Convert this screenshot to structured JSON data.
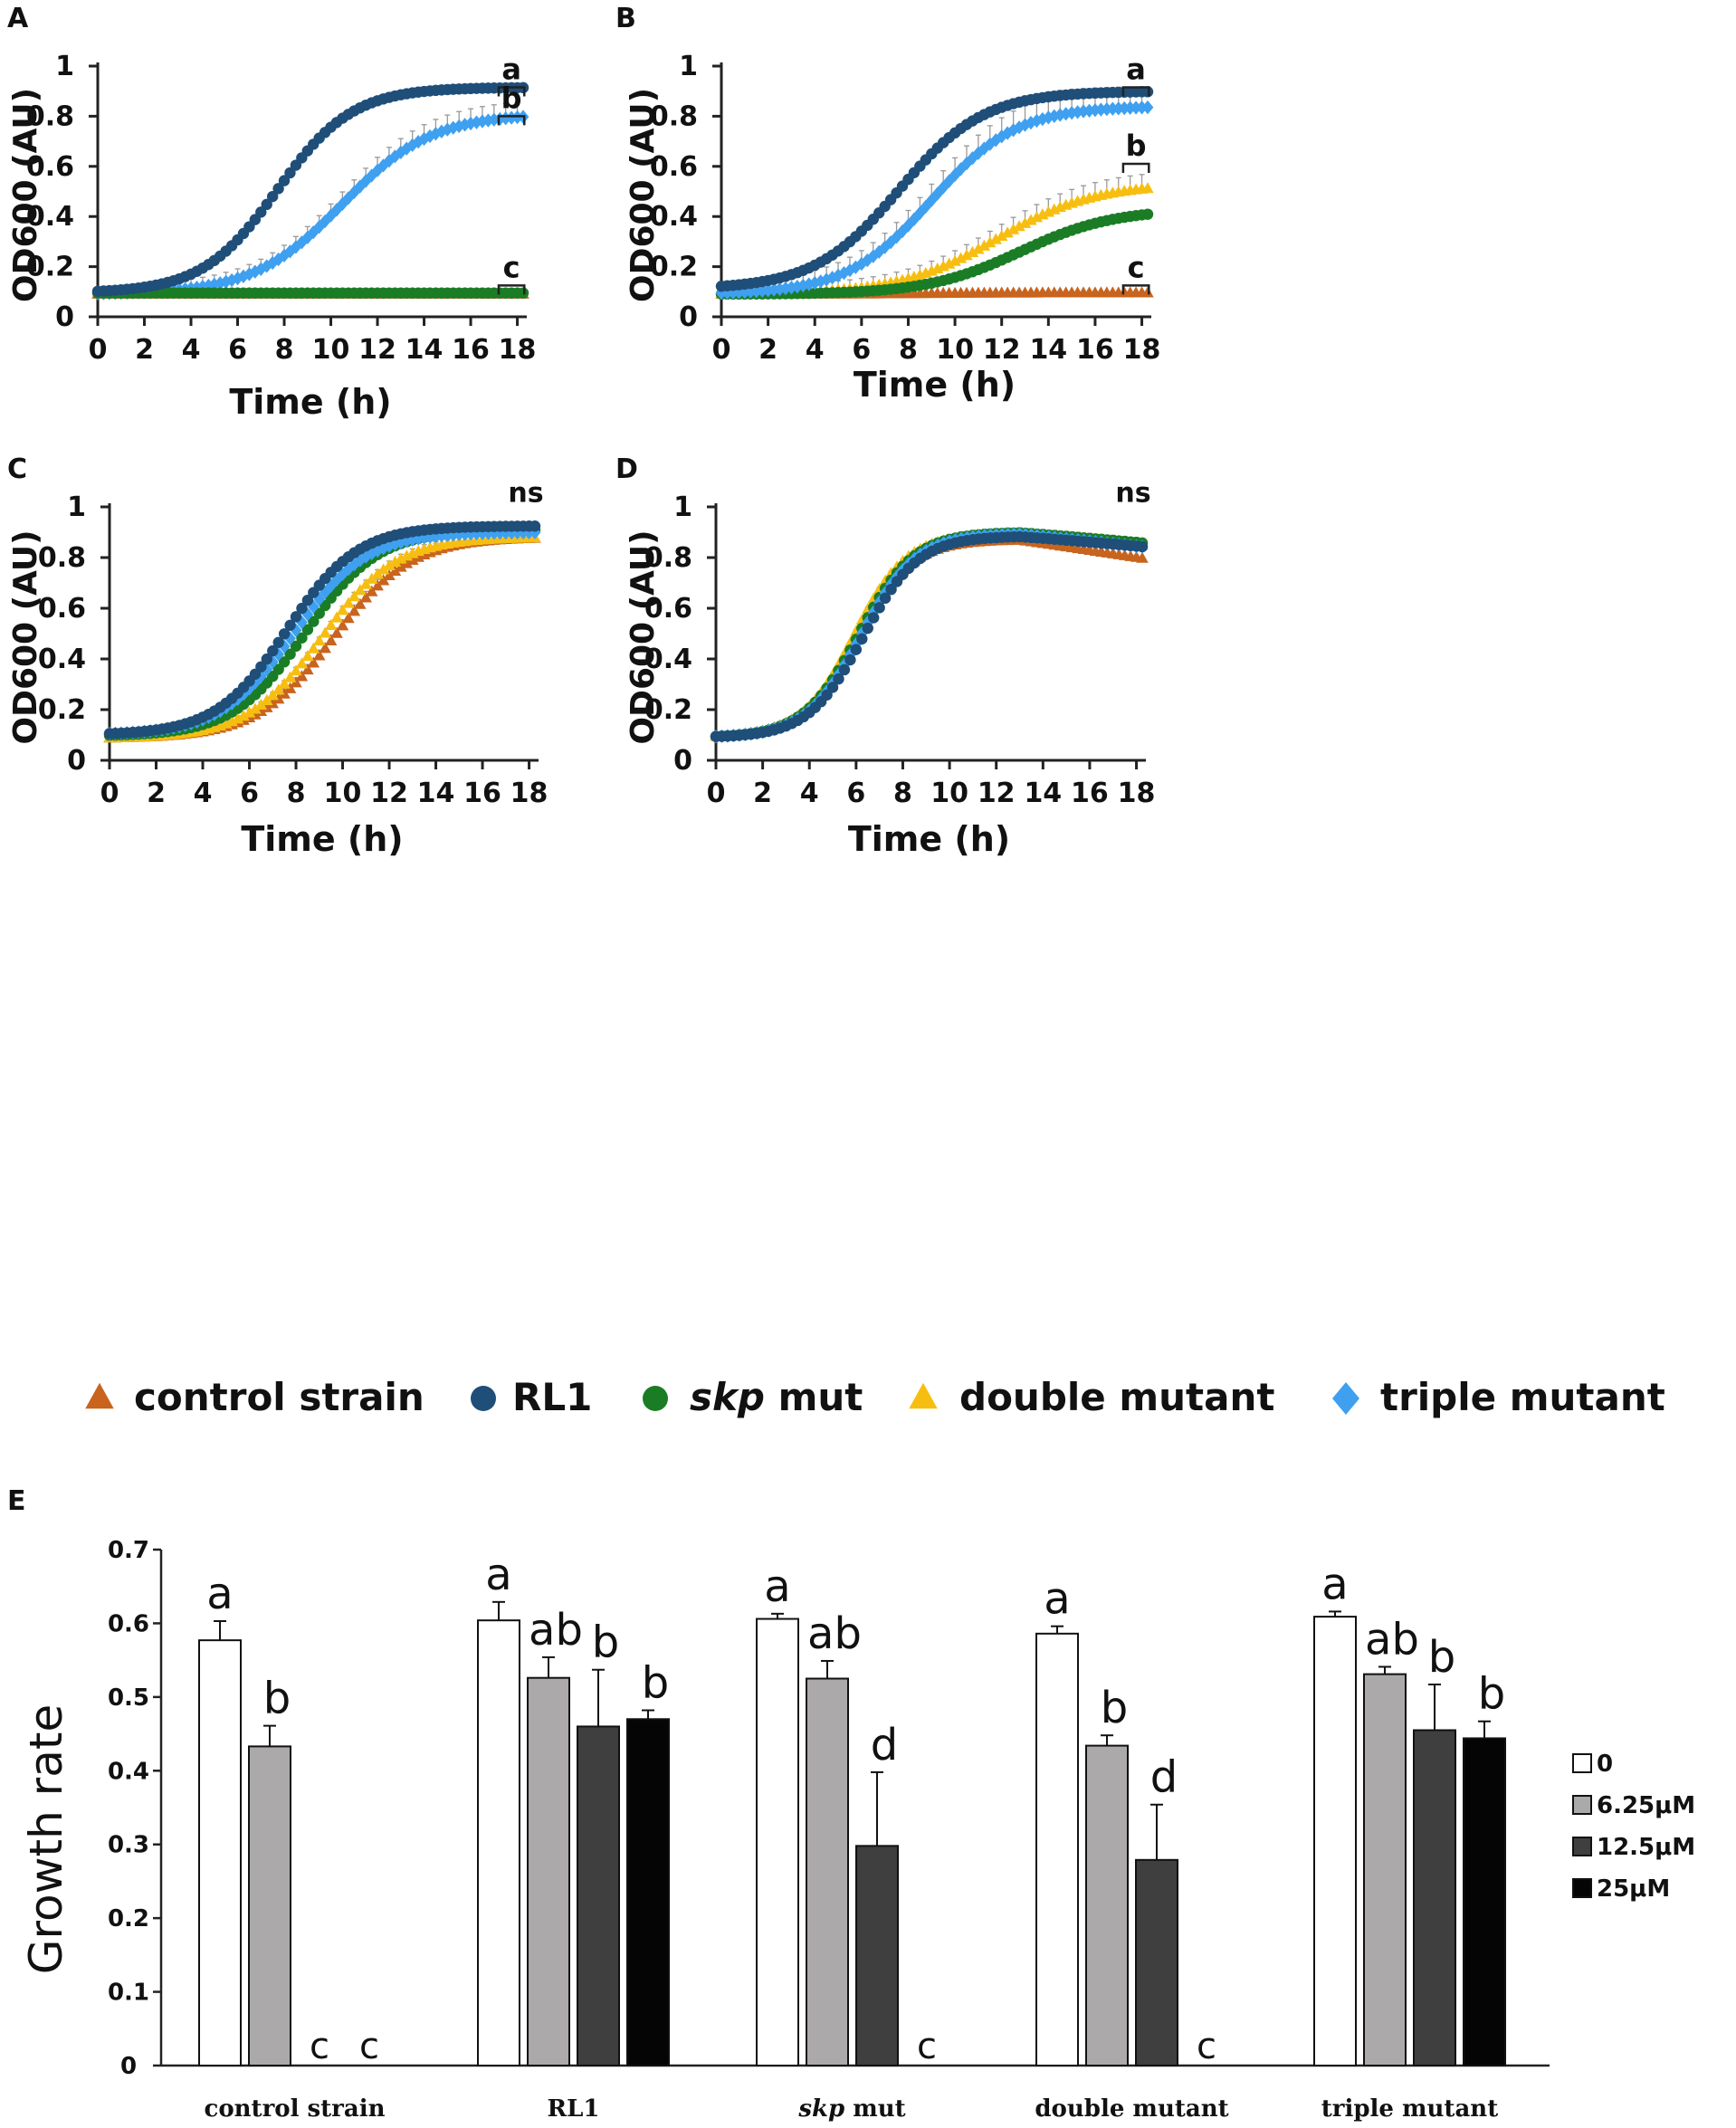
{
  "colors": {
    "control": "#C8641E",
    "rl1": "#1F4E79",
    "skp": "#1A7D25",
    "double": "#F7BE12",
    "triple": "#3FA0F0",
    "axis": "#222222",
    "error": "#999999",
    "bar_0": "#FFFFFF",
    "bar_625": "#ABA9A9",
    "bar_125": "#3F3F3F",
    "bar_25": "#050505"
  },
  "legend": {
    "control": "control strain",
    "rl1": "RL1",
    "skp_italic": "skp",
    "skp_rest": " mut",
    "double": "double mutant",
    "triple": "triple mutant"
  },
  "chart_data": [
    {
      "panel": "A",
      "type": "scatter",
      "xlabel": "Time (h)",
      "ylabel": "OD600 (AU)",
      "xlim": [
        0,
        18.25
      ],
      "ylim": [
        0,
        1
      ],
      "xticks": [
        "0",
        "2",
        "4",
        "6",
        "8",
        "10",
        "12",
        "14",
        "16",
        "18"
      ],
      "yticks": [
        "0",
        "0.2",
        "0.4",
        "0.6",
        "0.8",
        "1"
      ],
      "annotations": [
        {
          "label": "a",
          "y": 0.915
        },
        {
          "label": "b",
          "y": 0.8
        },
        {
          "label": "c",
          "y": 0.125
        }
      ],
      "series": [
        {
          "name": "control strain",
          "key": "control",
          "marker": "triangle",
          "base": 0.09,
          "max": 0.09,
          "mid": 9,
          "k": 0.6,
          "err": 0
        },
        {
          "name": "triple mutant",
          "key": "triple",
          "marker": "diamond",
          "base": 0.09,
          "max": 0.81,
          "mid": 10.5,
          "k": 0.52,
          "err": 0.06
        },
        {
          "name": "skp mut",
          "key": "skp",
          "marker": "circle",
          "base": 0.095,
          "max": 0.095,
          "mid": 9,
          "k": 0.6,
          "err": 0
        },
        {
          "name": "RL1",
          "key": "rl1",
          "marker": "circle",
          "base": 0.095,
          "max": 0.915,
          "mid": 7.7,
          "k": 0.62,
          "err": 0.005
        }
      ]
    },
    {
      "panel": "B",
      "type": "scatter",
      "xlabel": "Time (h)",
      "ylabel": "OD600 (AU)",
      "xlim": [
        0,
        18.25
      ],
      "ylim": [
        0,
        1
      ],
      "xticks": [
        "0",
        "2",
        "4",
        "6",
        "8",
        "10",
        "12",
        "14",
        "16",
        "18"
      ],
      "yticks": [
        "0",
        "0.2",
        "0.4",
        "0.6",
        "0.8",
        "1"
      ],
      "annotations": [
        {
          "label": "a",
          "y": 0.915
        },
        {
          "label": "b",
          "y": 0.61
        },
        {
          "label": "c",
          "y": 0.125
        }
      ],
      "series": [
        {
          "name": "control strain",
          "key": "control",
          "marker": "triangle",
          "base": 0.09,
          "max": 0.095,
          "mid": 9,
          "k": 0.6,
          "err": 0
        },
        {
          "name": "double mutant",
          "key": "double",
          "marker": "triangle",
          "base": 0.09,
          "max": 0.53,
          "mid": 11.8,
          "k": 0.48,
          "err": 0.06
        },
        {
          "name": "skp mut",
          "key": "skp",
          "marker": "circle",
          "base": 0.09,
          "max": 0.43,
          "mid": 12.8,
          "k": 0.5,
          "err": 0.01
        },
        {
          "name": "triple mutant",
          "key": "triple",
          "marker": "diamond",
          "base": 0.09,
          "max": 0.84,
          "mid": 9.0,
          "k": 0.55,
          "err": 0.08
        },
        {
          "name": "RL1",
          "key": "rl1",
          "marker": "circle",
          "base": 0.11,
          "max": 0.9,
          "mid": 7.6,
          "k": 0.55,
          "err": 0.02
        }
      ]
    },
    {
      "panel": "C",
      "type": "scatter",
      "xlabel": "Time (h)",
      "ylabel": "OD600 (AU)",
      "xlim": [
        0,
        18.25
      ],
      "ylim": [
        0,
        1
      ],
      "xticks": [
        "0",
        "2",
        "4",
        "6",
        "8",
        "10",
        "12",
        "14",
        "16",
        "18"
      ],
      "yticks": [
        "0",
        "0.2",
        "0.4",
        "0.6",
        "0.8",
        "1"
      ],
      "annotations": [
        {
          "label": "ns",
          "y": 1.02
        }
      ],
      "series": [
        {
          "name": "control strain",
          "key": "control",
          "marker": "triangle",
          "base": 0.085,
          "max": 0.88,
          "mid": 9.6,
          "k": 0.6,
          "err": 0.03
        },
        {
          "name": "double mutant",
          "key": "double",
          "marker": "triangle",
          "base": 0.085,
          "max": 0.88,
          "mid": 9.1,
          "k": 0.62,
          "err": 0.02
        },
        {
          "name": "skp mut",
          "key": "skp",
          "marker": "circle",
          "base": 0.095,
          "max": 0.91,
          "mid": 8.4,
          "k": 0.64,
          "err": 0.02
        },
        {
          "name": "triple mutant",
          "key": "triple",
          "marker": "diamond",
          "base": 0.1,
          "max": 0.9,
          "mid": 7.9,
          "k": 0.64,
          "err": 0.02
        },
        {
          "name": "RL1",
          "key": "rl1",
          "marker": "circle",
          "base": 0.1,
          "max": 0.925,
          "mid": 7.6,
          "k": 0.66,
          "err": 0.01
        }
      ]
    },
    {
      "panel": "D",
      "type": "scatter",
      "xlabel": "Time (h)",
      "ylabel": "OD600 (AU)",
      "xlim": [
        0,
        18.25
      ],
      "ylim": [
        0,
        1
      ],
      "xticks": [
        "0",
        "2",
        "4",
        "6",
        "8",
        "10",
        "12",
        "14",
        "16",
        "18"
      ],
      "yticks": [
        "0",
        "0.2",
        "0.4",
        "0.6",
        "0.8",
        "1"
      ],
      "annotations": [
        {
          "label": "ns",
          "y": 1.02
        }
      ],
      "series": [
        {
          "name": "control strain",
          "key": "control",
          "marker": "triangle",
          "base": 0.09,
          "max": 0.87,
          "mid": 6.0,
          "k": 0.85,
          "decline": 0.014,
          "err": 0.01
        },
        {
          "name": "double mutant",
          "key": "double",
          "marker": "triangle",
          "base": 0.09,
          "max": 0.89,
          "mid": 5.9,
          "k": 0.9,
          "decline": 0.008,
          "err": 0.01
        },
        {
          "name": "skp mut",
          "key": "skp",
          "marker": "circle",
          "base": 0.09,
          "max": 0.9,
          "mid": 6.1,
          "k": 0.85,
          "decline": 0.008,
          "err": 0.02
        },
        {
          "name": "triple mutant",
          "key": "triple",
          "marker": "diamond",
          "base": 0.09,
          "max": 0.895,
          "mid": 6.2,
          "k": 0.85,
          "decline": 0.01,
          "err": 0.01
        },
        {
          "name": "RL1",
          "key": "rl1",
          "marker": "circle",
          "base": 0.09,
          "max": 0.885,
          "mid": 6.3,
          "k": 0.85,
          "decline": 0.008,
          "err": 0.01
        }
      ]
    },
    {
      "panel": "E",
      "type": "bar",
      "ylabel": "Growth rate",
      "ylim": [
        0,
        0.7
      ],
      "yticks": [
        "0",
        "0.1",
        "0.2",
        "0.3",
        "0.4",
        "0.5",
        "0.6",
        "0.7"
      ],
      "categories": [
        {
          "label": "control strain"
        },
        {
          "label": "RL1"
        },
        {
          "label_italic": "skp",
          "label_rest": " mut"
        },
        {
          "label": "double mutant"
        },
        {
          "label": "triple mutant"
        }
      ],
      "series": [
        {
          "name": "0",
          "key": "bar_0",
          "values": [
            0.577,
            0.604,
            0.606,
            0.586,
            0.609
          ],
          "errors": [
            0.026,
            0.025,
            0.007,
            0.01,
            0.007
          ],
          "letters": [
            "a",
            "a",
            "a",
            "a",
            "a"
          ]
        },
        {
          "name": "6.25μM",
          "key": "bar_625",
          "values": [
            0.433,
            0.526,
            0.525,
            0.434,
            0.531
          ],
          "errors": [
            0.028,
            0.028,
            0.024,
            0.014,
            0.01
          ],
          "letters": [
            "b",
            "ab",
            "ab",
            "b",
            "ab"
          ]
        },
        {
          "name": "12.5μM",
          "key": "bar_125",
          "values": [
            0,
            0.46,
            0.298,
            0.279,
            0.455
          ],
          "errors": [
            0,
            0.077,
            0.1,
            0.075,
            0.062
          ],
          "letters": [
            "c",
            "b",
            "d",
            "d",
            "b"
          ]
        },
        {
          "name": "25μM",
          "key": "bar_25",
          "values": [
            0,
            0.47,
            0,
            0,
            0.444
          ],
          "errors": [
            0,
            0.012,
            0,
            0,
            0.023
          ],
          "letters": [
            "c",
            "b",
            "c",
            "c",
            "b"
          ]
        }
      ]
    }
  ]
}
